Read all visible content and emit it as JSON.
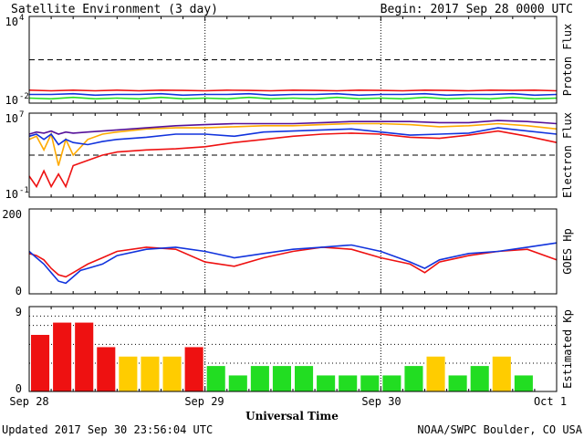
{
  "header": {
    "title": "Satellite Environment (3 day)",
    "begin_label": "Begin:  2017 Sep 28 0000 UTC"
  },
  "footer": {
    "updated": "Updated 2017 Sep 30 23:56:04 UTC",
    "credit": "NOAA/SWPC Boulder, CO USA"
  },
  "x_axis": {
    "label": "Universal Time",
    "ticks": [
      "Sep 28",
      "Sep 29",
      "Sep 30",
      "Oct 1"
    ]
  },
  "colors": {
    "red": "#ee1111",
    "blue": "#1133dd",
    "green": "#22dd22",
    "orange": "#ffaa00",
    "purple": "#551199",
    "yellow": "#ffcc00"
  },
  "chart_data": [
    {
      "type": "line",
      "ylabel": "Proton Flux",
      "y_ticks": [
        {
          "base": "10",
          "exp": "4"
        },
        {
          "base": "10",
          "exp": "-2"
        }
      ],
      "ylim": [
        -2,
        4
      ],
      "log_scale": true,
      "threshold": 1,
      "x": [
        0,
        3,
        6,
        9,
        12,
        15,
        18,
        21,
        24,
        27,
        30,
        33,
        36,
        39,
        42,
        45,
        48,
        51,
        54,
        57,
        60,
        63,
        66,
        69,
        72
      ],
      "series": [
        {
          "color": "red",
          "values": [
            -1.1,
            -1.15,
            -1.1,
            -1.15,
            -1.1,
            -1.15,
            -1.1,
            -1.12,
            -1.15,
            -1.1,
            -1.12,
            -1.15,
            -1.1,
            -1.12,
            -1.15,
            -1.1,
            -1.12,
            -1.15,
            -1.1,
            -1.12,
            -1.15,
            -1.1,
            -1.12,
            -1.1,
            -1.15
          ]
        },
        {
          "color": "blue",
          "values": [
            -1.4,
            -1.4,
            -1.35,
            -1.45,
            -1.4,
            -1.4,
            -1.35,
            -1.45,
            -1.4,
            -1.4,
            -1.35,
            -1.45,
            -1.4,
            -1.4,
            -1.35,
            -1.45,
            -1.4,
            -1.4,
            -1.35,
            -1.45,
            -1.4,
            -1.4,
            -1.35,
            -1.45,
            -1.4
          ]
        },
        {
          "color": "green",
          "values": [
            -1.65,
            -1.7,
            -1.6,
            -1.7,
            -1.65,
            -1.7,
            -1.6,
            -1.7,
            -1.65,
            -1.7,
            -1.6,
            -1.7,
            -1.65,
            -1.7,
            -1.6,
            -1.7,
            -1.65,
            -1.7,
            -1.6,
            -1.7,
            -1.65,
            -1.7,
            -1.6,
            -1.7,
            -1.65
          ]
        }
      ]
    },
    {
      "type": "line",
      "ylabel": "Electron Flux",
      "y_ticks": [
        {
          "base": "10",
          "exp": "7"
        },
        {
          "base": "10",
          "exp": "-1"
        }
      ],
      "ylim": [
        -1,
        7
      ],
      "log_scale": true,
      "threshold": 3,
      "x": [
        0,
        1,
        2,
        3,
        4,
        5,
        6,
        8,
        10,
        12,
        16,
        20,
        24,
        28,
        32,
        36,
        40,
        44,
        48,
        52,
        56,
        60,
        64,
        68,
        72
      ],
      "series": [
        {
          "color": "orange",
          "values": [
            4.5,
            4.8,
            3.5,
            5.0,
            2.0,
            4.5,
            3.0,
            4.5,
            5.0,
            5.2,
            5.5,
            5.6,
            5.6,
            5.7,
            5.8,
            5.8,
            5.9,
            6.0,
            6.0,
            5.9,
            5.7,
            5.8,
            6.0,
            5.8,
            5.5
          ]
        },
        {
          "color": "purple",
          "values": [
            5.0,
            5.2,
            5.1,
            5.3,
            5.0,
            5.2,
            5.1,
            5.2,
            5.3,
            5.4,
            5.6,
            5.8,
            5.9,
            6.0,
            6.0,
            6.0,
            6.1,
            6.2,
            6.2,
            6.2,
            6.1,
            6.1,
            6.3,
            6.2,
            6.0
          ]
        },
        {
          "color": "blue",
          "values": [
            4.8,
            5.0,
            4.5,
            5.0,
            4.0,
            4.5,
            4.2,
            4.0,
            4.3,
            4.5,
            4.7,
            5.0,
            5.0,
            4.8,
            5.2,
            5.3,
            5.4,
            5.5,
            5.2,
            4.9,
            5.0,
            5.1,
            5.6,
            5.3,
            5.0
          ]
        },
        {
          "color": "red",
          "values": [
            1.0,
            0.0,
            1.5,
            0.0,
            1.2,
            0.0,
            2.0,
            2.5,
            3.0,
            3.3,
            3.5,
            3.6,
            3.8,
            4.2,
            4.5,
            4.8,
            5.0,
            5.1,
            5.0,
            4.7,
            4.6,
            4.9,
            5.3,
            4.8,
            4.2
          ]
        }
      ]
    },
    {
      "type": "line",
      "ylabel": "GOES Hp",
      "y_ticks": [
        "200",
        "0"
      ],
      "ylim": [
        0,
        200
      ],
      "x": [
        0,
        1,
        2,
        3,
        4,
        5,
        6,
        7,
        8,
        10,
        12,
        16,
        20,
        24,
        28,
        32,
        36,
        40,
        44,
        48,
        52,
        54,
        56,
        60,
        64,
        68,
        72
      ],
      "series": [
        {
          "color": "red",
          "values": [
            95,
            90,
            80,
            60,
            45,
            40,
            50,
            60,
            70,
            85,
            100,
            110,
            105,
            75,
            65,
            85,
            100,
            110,
            105,
            85,
            70,
            50,
            75,
            90,
            100,
            105,
            80
          ]
        },
        {
          "color": "blue",
          "values": [
            100,
            85,
            70,
            50,
            30,
            25,
            40,
            55,
            60,
            70,
            90,
            105,
            110,
            100,
            85,
            95,
            105,
            110,
            115,
            100,
            75,
            60,
            80,
            95,
            100,
            110,
            120
          ]
        }
      ]
    },
    {
      "type": "bar",
      "ylabel": "Estimated Kp",
      "y_ticks": [
        "9",
        "0"
      ],
      "ylim": [
        0,
        9
      ],
      "values": [
        6,
        7.3,
        7.3,
        4.7,
        3.7,
        3.7,
        3.7,
        4.7,
        2.7,
        1.7,
        2.7,
        2.7,
        2.7,
        1.7,
        1.7,
        1.7,
        1.7,
        2.7,
        3.7,
        1.7,
        2.7,
        3.7,
        1.7,
        0
      ],
      "bar_colors": [
        "red",
        "red",
        "red",
        "red",
        "yellow",
        "yellow",
        "yellow",
        "red",
        "green",
        "green",
        "green",
        "green",
        "green",
        "green",
        "green",
        "green",
        "green",
        "green",
        "yellow",
        "green",
        "green",
        "yellow",
        "green",
        "green"
      ]
    }
  ]
}
